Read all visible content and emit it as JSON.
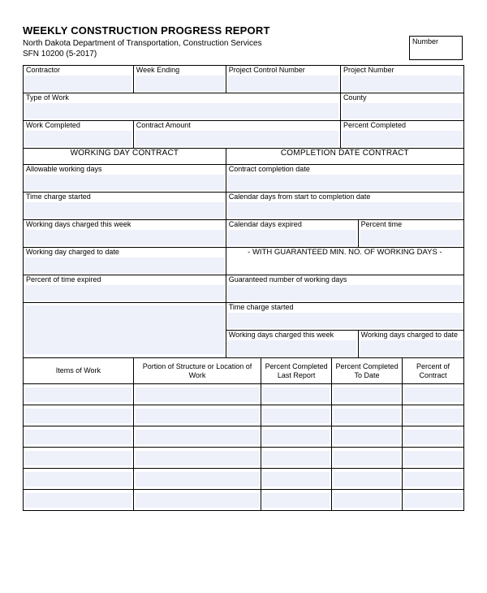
{
  "header": {
    "title": "WEEKLY CONSTRUCTION PROGRESS REPORT",
    "subtitle": "North Dakota Department of Transportation, Construction Services",
    "form_id": "SFN 10200 (5-2017)",
    "number_label": "Number"
  },
  "row1": {
    "contractor": "Contractor",
    "week_ending": "Week Ending",
    "pcn": "Project Control Number",
    "project_number": "Project Number"
  },
  "row2": {
    "type_of_work": "Type of Work",
    "county": "County"
  },
  "row3": {
    "work_completed": "Work Completed",
    "contract_amount": "Contract Amount",
    "percent_completed": "Percent Completed"
  },
  "sections": {
    "working_day": "WORKING DAY CONTRACT",
    "completion_date": "COMPLETION DATE CONTRACT"
  },
  "left_col": {
    "allowable": "Allowable working days",
    "time_charge_started": "Time charge started",
    "wdc_week": "Working days charged this week",
    "wdc_todate": "Working day charged to date",
    "pct_time_expired": "Percent of time expired"
  },
  "right_col": {
    "contract_completion": "Contract completion date",
    "cal_days_start": "Calendar days from start to completion date",
    "cal_days_expired": "Calendar days expired",
    "percent_time": "Percent time",
    "guaranteed_note": "- WITH GUARANTEED MIN. NO. OF WORKING DAYS -",
    "guaranteed_num": "Guaranteed number of working days",
    "time_charge_started": "Time charge started",
    "wdc_week": "Working days charged this week",
    "wdc_todate": "Working days charged to date"
  },
  "items_table": {
    "headers": {
      "items": "Items of Work",
      "portion": "Portion of Structure or Location of Work",
      "pc_last": "Percent Completed Last Report",
      "pc_todate": "Percent Completed To Date",
      "p_contract": "Percent of Contract"
    },
    "row_count": 6
  },
  "style": {
    "fill_color": "#eef0fa",
    "border_color": "#000000",
    "background": "#ffffff"
  }
}
